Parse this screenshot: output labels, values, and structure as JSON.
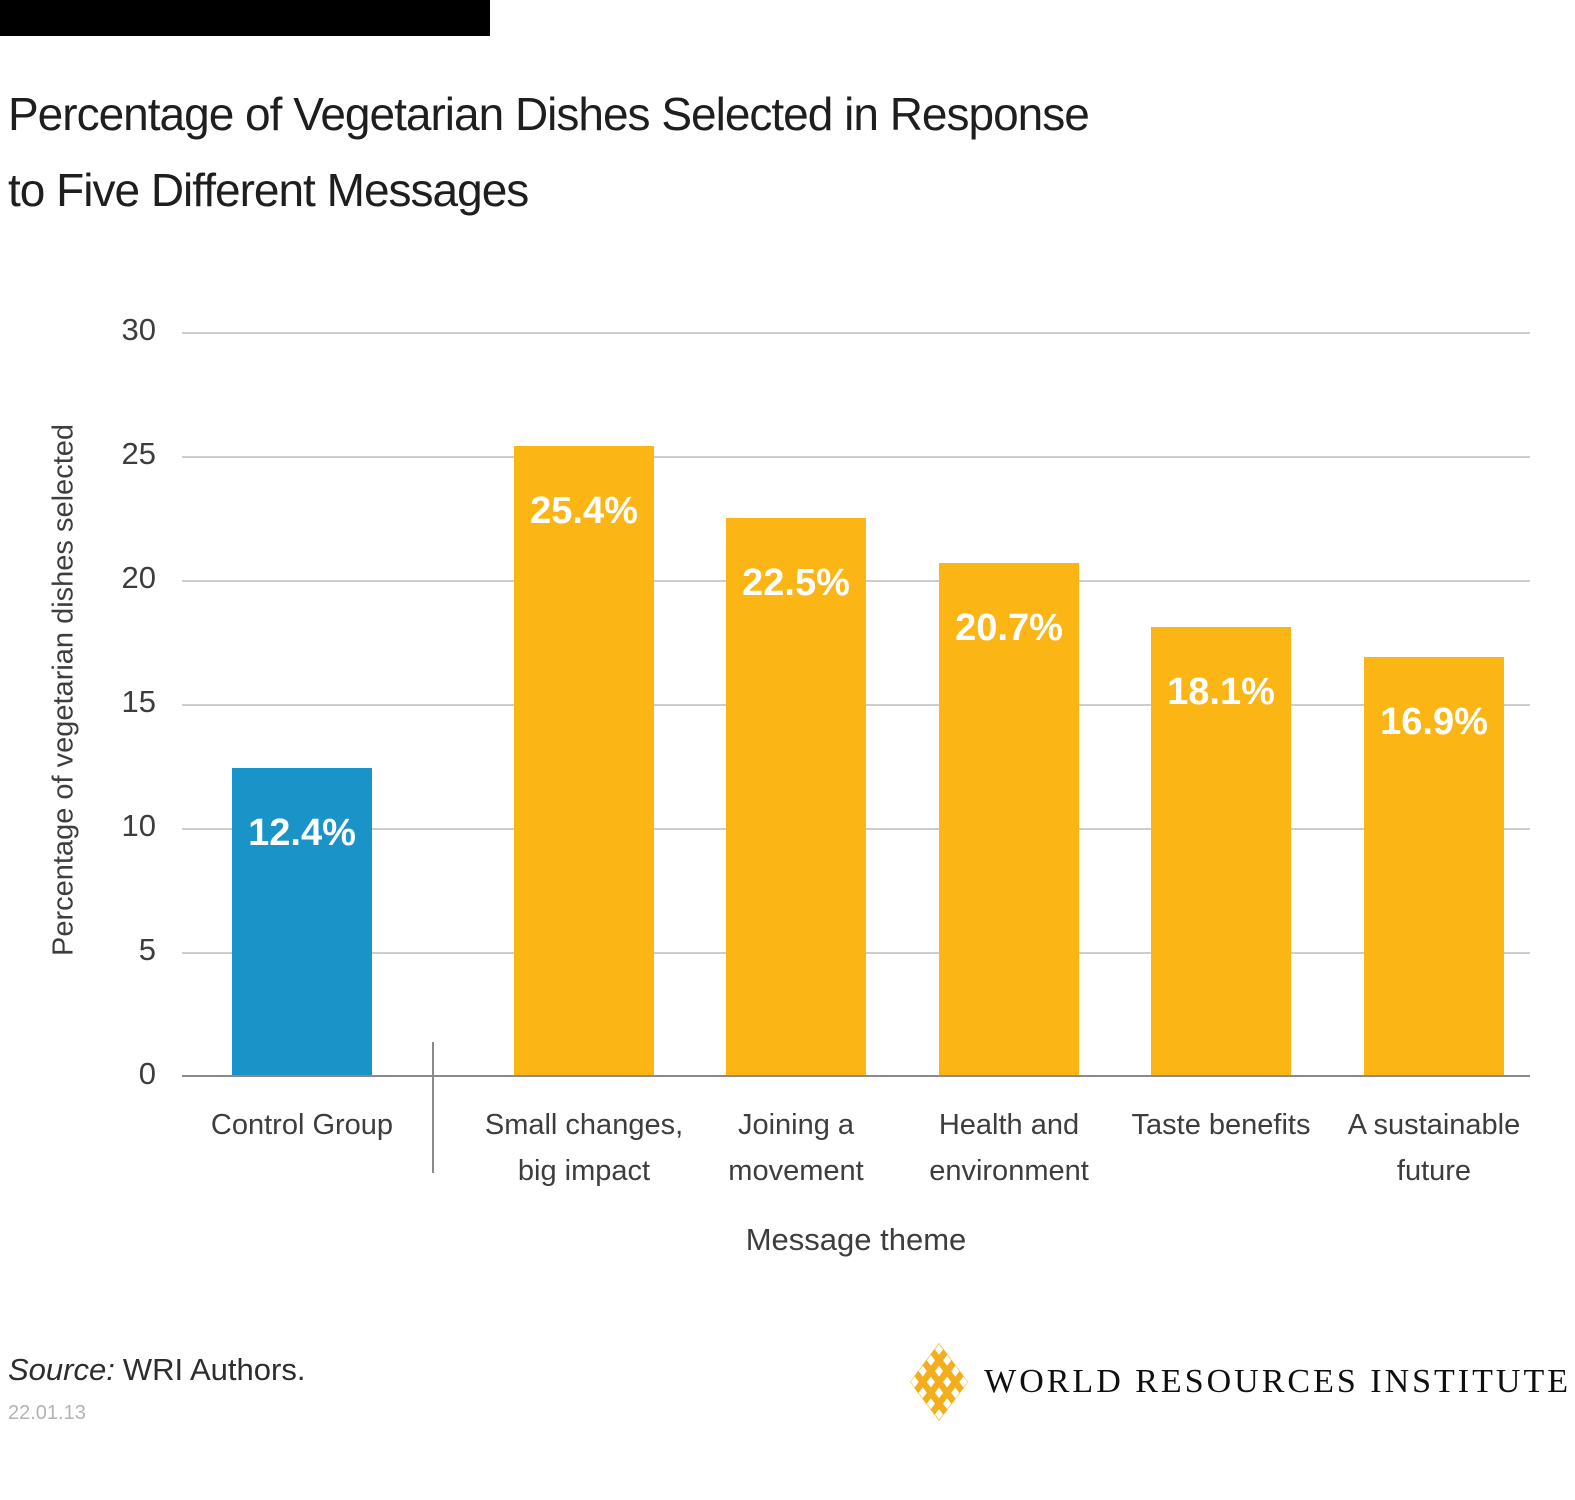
{
  "title": {
    "line1": "Percentage of Vegetarian Dishes Selected in Response",
    "line2": "to Five Different Messages"
  },
  "chart_data": {
    "type": "bar",
    "title": "Percentage of Vegetarian Dishes Selected in Response to Five Different Messages",
    "xlabel": "Message theme",
    "ylabel": "Percentage of vegetarian dishes selected",
    "ylim": [
      0,
      30
    ],
    "yticks": [
      0,
      5,
      10,
      15,
      20,
      25,
      30
    ],
    "grid": true,
    "legend": "none",
    "categories": [
      "Control Group",
      "Small changes,\nbig impact",
      "Joining a\nmovement",
      "Health and\nenvironment",
      "Taste benefits",
      "A sustainable\nfuture"
    ],
    "values": [
      12.4,
      25.4,
      22.5,
      20.7,
      18.1,
      16.9
    ],
    "value_labels": [
      "12.4%",
      "25.4%",
      "22.5%",
      "20.7%",
      "18.1%",
      "16.9%"
    ],
    "colors": {
      "control": "#1a93c8",
      "message": "#fbb616"
    },
    "bar_color_keys": [
      "control",
      "message",
      "message",
      "message",
      "message",
      "message"
    ],
    "gridline_color": "#cdcdcd",
    "axis_color": "#8a8a8a"
  },
  "footer": {
    "source_label": "Source:",
    "source_text": "WRI Authors.",
    "date": "22.01.13",
    "logo_text": "WORLD RESOURCES INSTITUTE",
    "logo_color": "#f2ae1d"
  }
}
